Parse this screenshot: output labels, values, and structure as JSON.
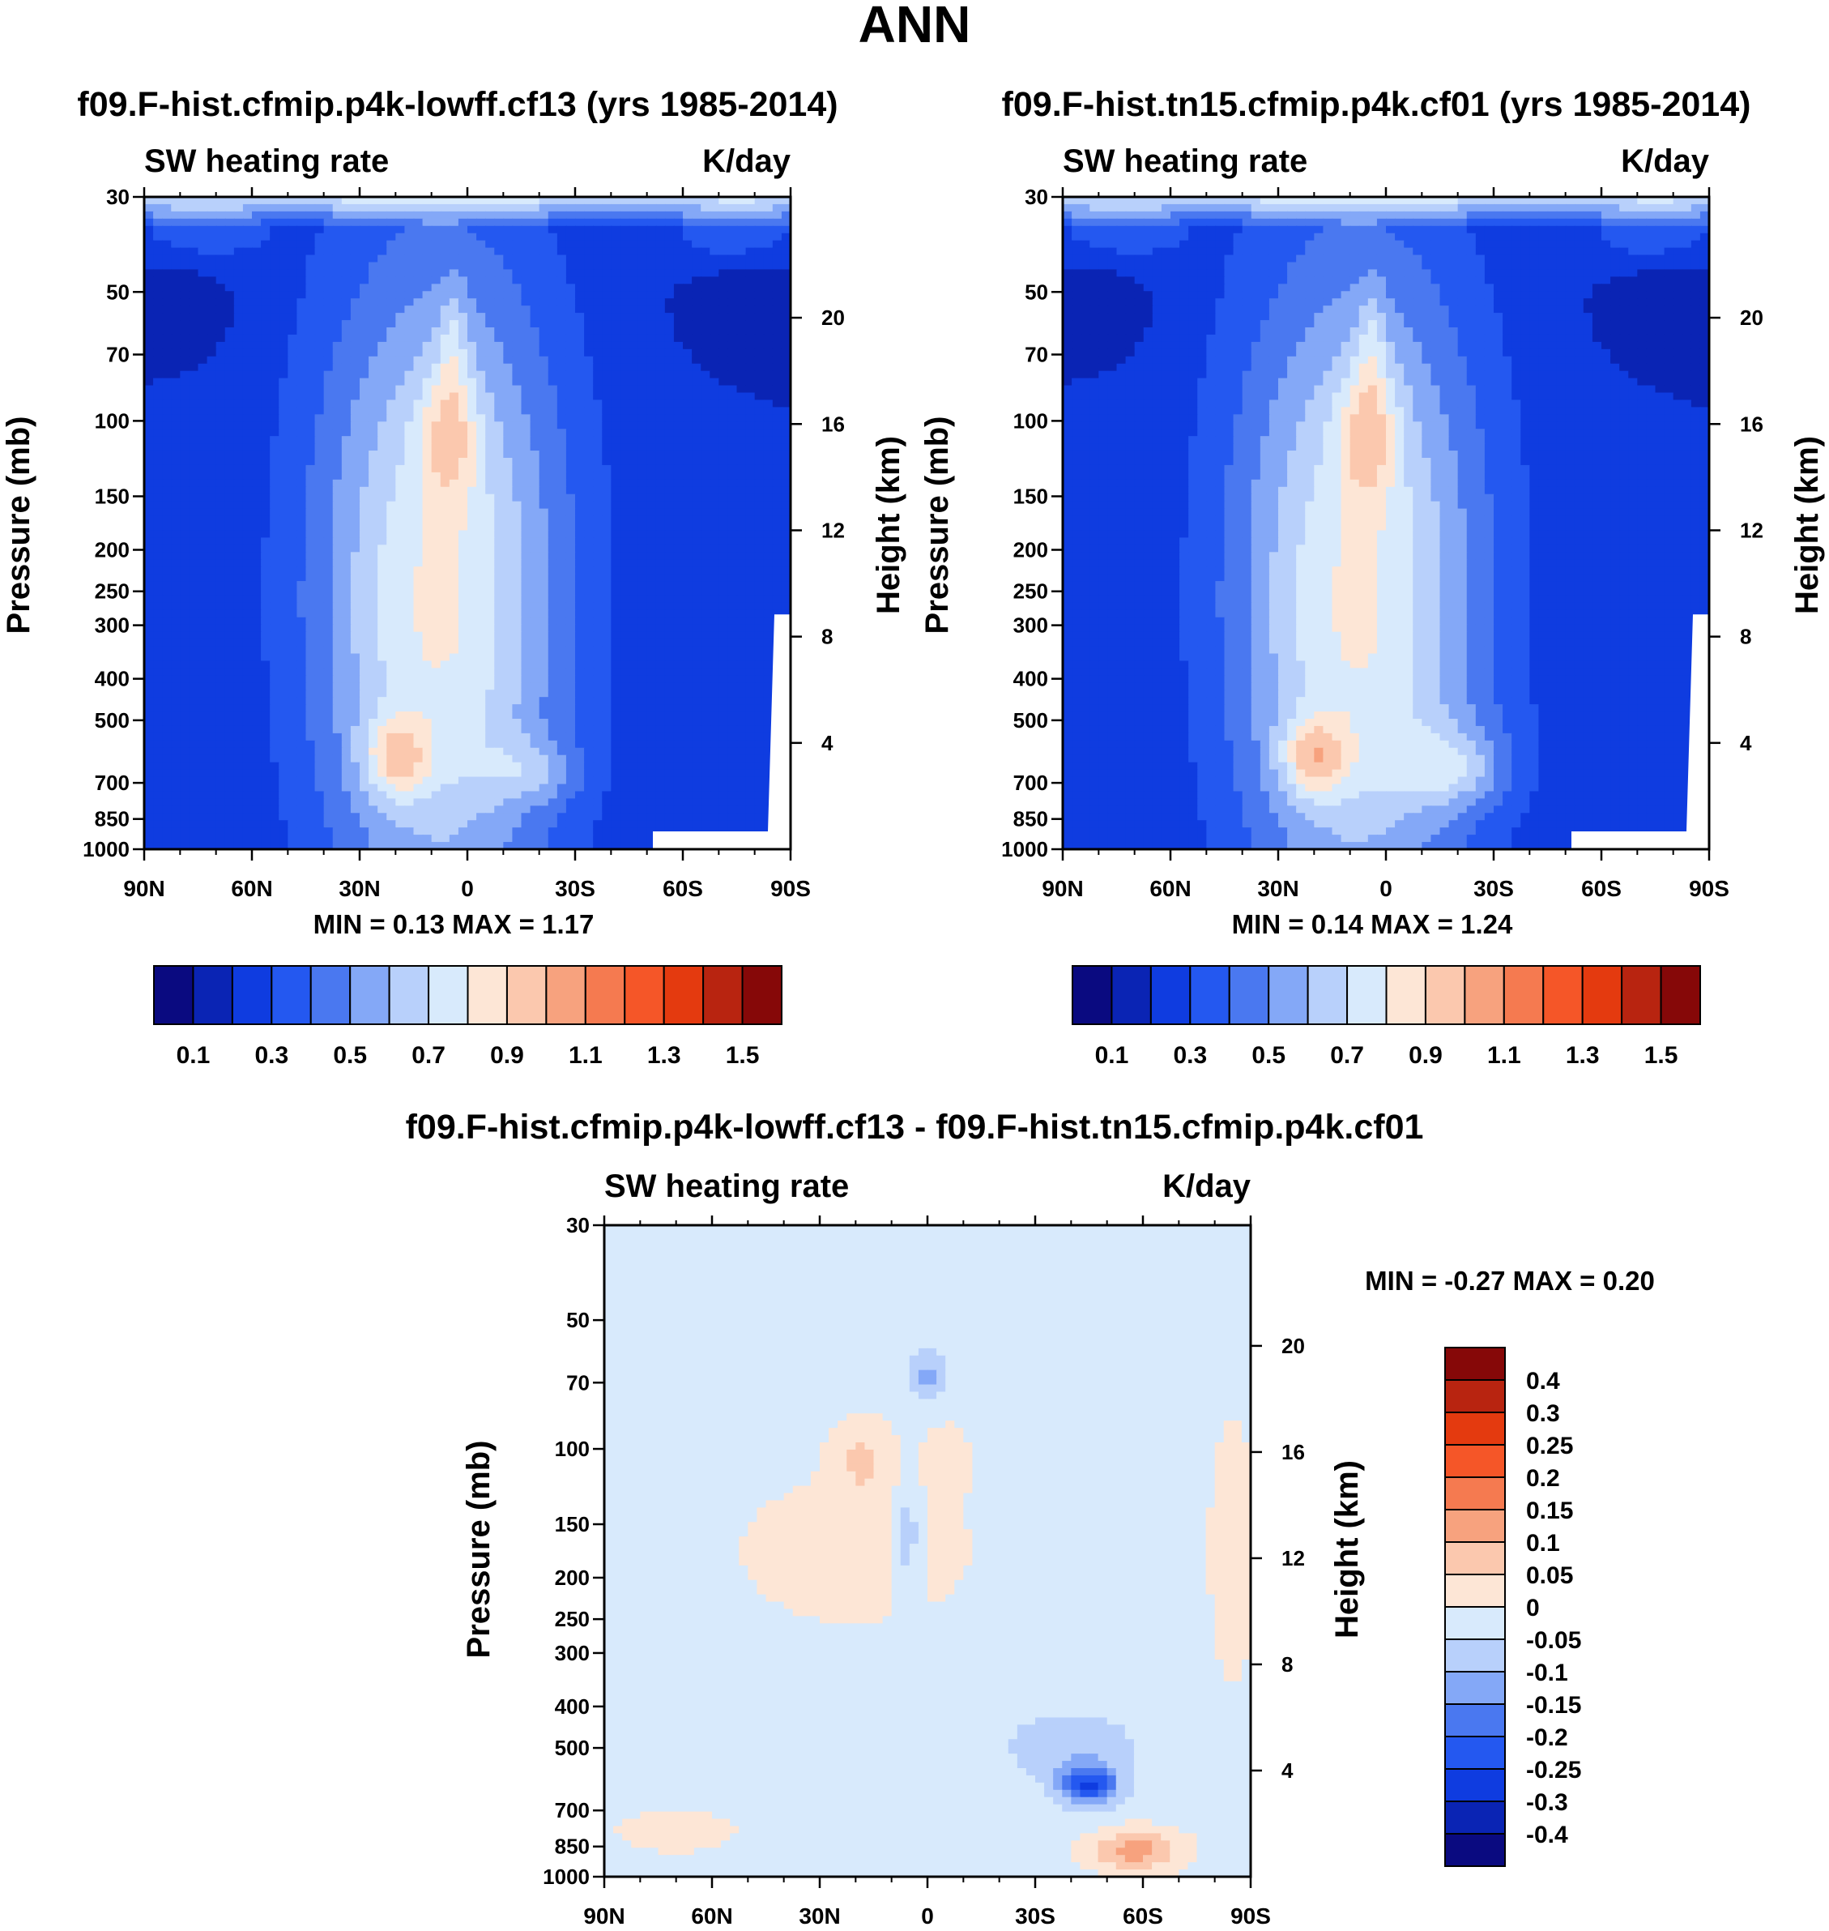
{
  "page": {
    "title": "ANN"
  },
  "colors": {
    "seq": [
      "#0a0a80",
      "#0a24b4",
      "#0f3ce0",
      "#2458f0",
      "#4a78f0",
      "#84a8f7",
      "#b8d0fb",
      "#d8eafc",
      "#fde6d6",
      "#fbc8ae",
      "#f7a27e",
      "#f57a50",
      "#f55628",
      "#e43a0f",
      "#b82410",
      "#860808"
    ],
    "diff": [
      "#0a0a80",
      "#0a24b4",
      "#0f3ce0",
      "#2458f0",
      "#4a78f0",
      "#84a8f7",
      "#b8d0fb",
      "#d8eafc",
      "#fde6d6",
      "#fbc8ae",
      "#f7a27e",
      "#f57a50",
      "#f55628",
      "#e43a0f",
      "#b82410",
      "#860808"
    ]
  },
  "panels": [
    {
      "title": "f09.F-hist.cfmip.p4k-lowff.cf13 (yrs 1985-2014)",
      "subtitle_left": "SW heating rate",
      "subtitle_right": "K/day",
      "stats": "MIN =   0.13  MAX =   1.17",
      "ylabel": "Pressure (mb)",
      "y2label": "Height (km)"
    },
    {
      "title": "f09.F-hist.tn15.cfmip.p4k.cf01 (yrs 1985-2014)",
      "subtitle_left": "SW heating rate",
      "subtitle_right": "K/day",
      "stats": "MIN =   0.14  MAX =   1.24",
      "ylabel": "Pressure (mb)",
      "y2label": "Height (km)"
    },
    {
      "title": "f09.F-hist.cfmip.p4k-lowff.cf13 - f09.F-hist.tn15.cfmip.p4k.cf01",
      "subtitle_left": "SW heating rate",
      "subtitle_right": "K/day",
      "stats": "MIN =  -0.27  MAX =   0.20",
      "ylabel": "Pressure (mb)",
      "y2label": "Height (km)"
    }
  ],
  "colorbars": {
    "horizontal_labels": [
      "0.1",
      "0.3",
      "0.5",
      "0.7",
      "0.9",
      "1.1",
      "1.3",
      "1.5"
    ],
    "vertical_labels": [
      "0.4",
      "0.3",
      "0.25",
      "0.2",
      "0.15",
      "0.1",
      "0.05",
      "0",
      "-0.05",
      "-0.1",
      "-0.15",
      "-0.2",
      "-0.25",
      "-0.3",
      "-0.4"
    ]
  },
  "chart_data": [
    {
      "type": "heatmap",
      "title": "f09.F-hist.cfmip.p4k-lowff.cf13 (yrs 1985-2014)",
      "variable": "SW heating rate",
      "units": "K/day",
      "xlabel": "",
      "ylabel": "Pressure (mb)",
      "y2label": "Height (km)",
      "x_ticks": [
        "90N",
        "60N",
        "30N",
        "0",
        "30S",
        "60S",
        "90S"
      ],
      "y_ticks": [
        30,
        50,
        70,
        100,
        150,
        200,
        250,
        300,
        400,
        500,
        700,
        850,
        1000
      ],
      "y_range": [
        30,
        1000
      ],
      "y2_ticks": [
        20,
        16,
        12,
        8,
        4
      ],
      "levels": [
        0.1,
        0.2,
        0.3,
        0.4,
        0.5,
        0.6,
        0.7,
        0.8,
        0.9,
        1.0,
        1.1,
        1.2,
        1.3,
        1.4,
        1.5
      ],
      "min": 0.13,
      "max": 1.17
    },
    {
      "type": "heatmap",
      "title": "f09.F-hist.tn15.cfmip.p4k.cf01 (yrs 1985-2014)",
      "variable": "SW heating rate",
      "units": "K/day",
      "xlabel": "",
      "ylabel": "Pressure (mb)",
      "y2label": "Height (km)",
      "x_ticks": [
        "90N",
        "60N",
        "30N",
        "0",
        "30S",
        "60S",
        "90S"
      ],
      "y_ticks": [
        30,
        50,
        70,
        100,
        150,
        200,
        250,
        300,
        400,
        500,
        700,
        850,
        1000
      ],
      "y_range": [
        30,
        1000
      ],
      "y2_ticks": [
        20,
        16,
        12,
        8,
        4
      ],
      "levels": [
        0.1,
        0.2,
        0.3,
        0.4,
        0.5,
        0.6,
        0.7,
        0.8,
        0.9,
        1.0,
        1.1,
        1.2,
        1.3,
        1.4,
        1.5
      ],
      "min": 0.14,
      "max": 1.24
    },
    {
      "type": "heatmap",
      "title": "f09.F-hist.cfmip.p4k-lowff.cf13 - f09.F-hist.tn15.cfmip.p4k.cf01",
      "variable": "SW heating rate",
      "units": "K/day",
      "xlabel": "",
      "ylabel": "Pressure (mb)",
      "y2label": "Height (km)",
      "x_ticks": [
        "90N",
        "60N",
        "30N",
        "0",
        "30S",
        "60S",
        "90S"
      ],
      "y_ticks": [
        30,
        50,
        70,
        100,
        150,
        200,
        250,
        300,
        400,
        500,
        700,
        850,
        1000
      ],
      "y_range": [
        30,
        1000
      ],
      "y2_ticks": [
        20,
        16,
        12,
        8,
        4
      ],
      "levels": [
        -0.4,
        -0.3,
        -0.25,
        -0.2,
        -0.15,
        -0.1,
        -0.05,
        0,
        0.05,
        0.1,
        0.15,
        0.2,
        0.25,
        0.3,
        0.4
      ],
      "min": -0.27,
      "max": 0.2
    }
  ]
}
